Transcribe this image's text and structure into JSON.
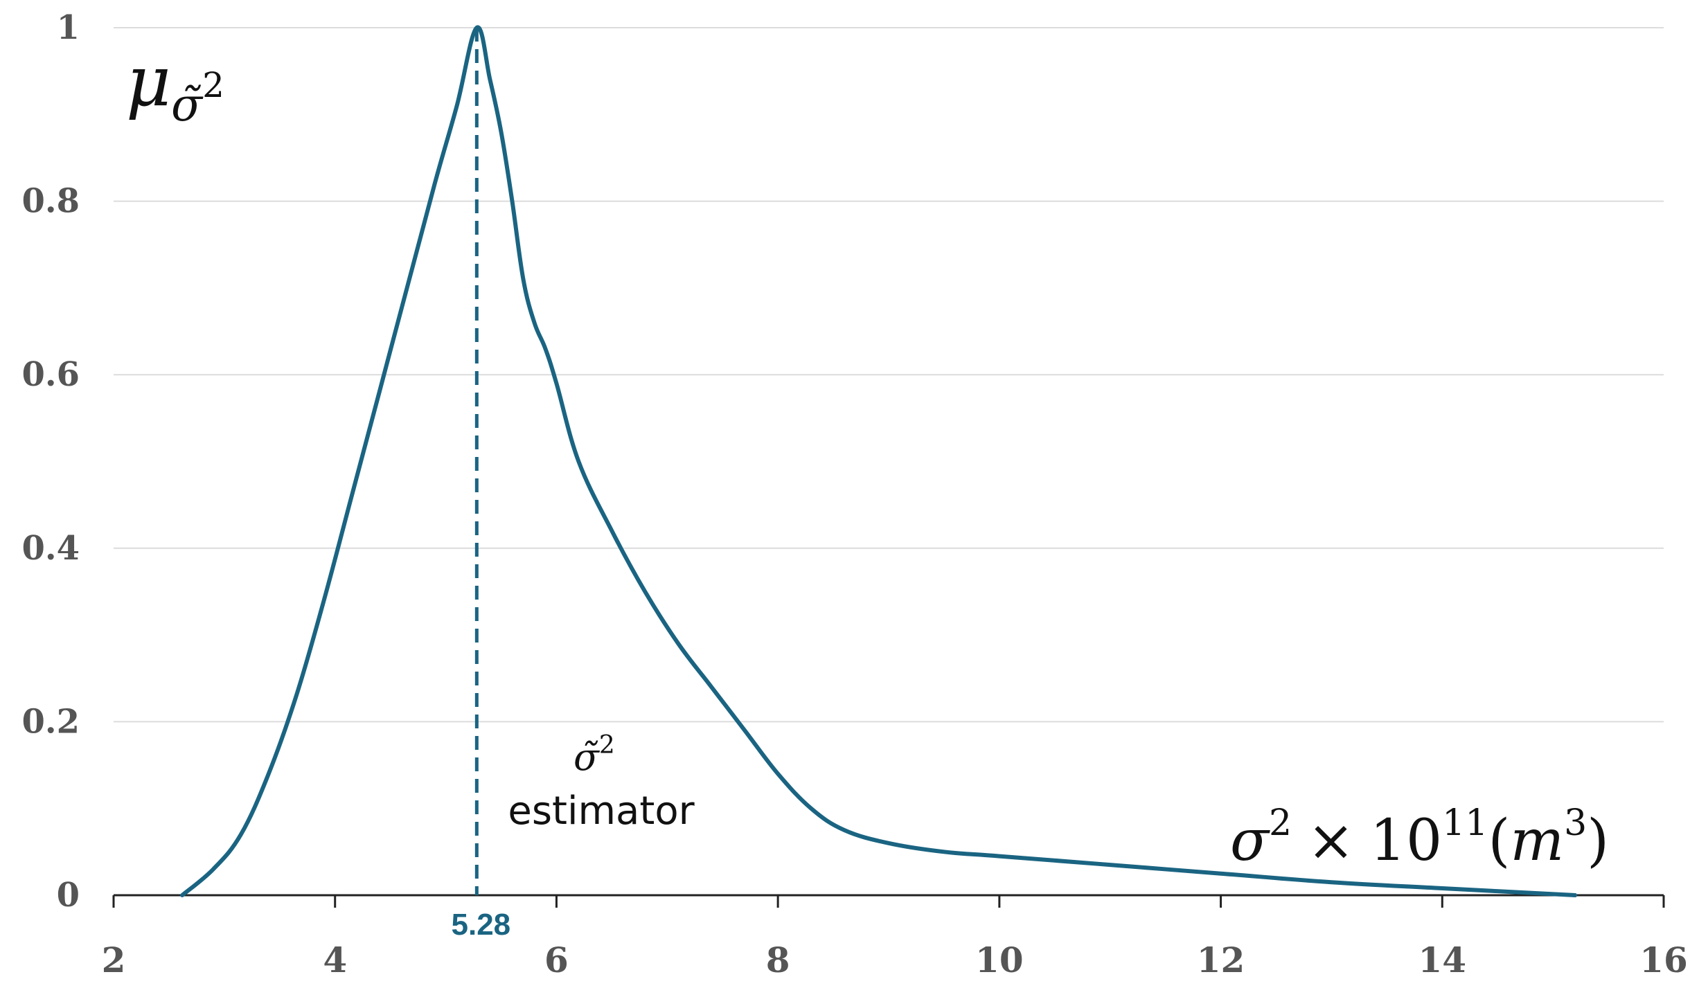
{
  "chart_data": {
    "type": "line",
    "title": "",
    "ylabel": {
      "symbol": "μ",
      "subscript": "σ̃",
      "subscript_exp": "2"
    },
    "xlabel": {
      "base": "σ",
      "base_exp": "2",
      "times": "×",
      "ten": "10",
      "ten_exp": "11",
      "unit_open": "(",
      "unit": "m",
      "unit_exp": "3",
      "unit_close": ")"
    },
    "xlim": [
      2,
      16
    ],
    "ylim": [
      0,
      1
    ],
    "x_ticks": [
      2,
      4,
      6,
      8,
      10,
      12,
      14,
      16
    ],
    "y_ticks": [
      0,
      0.2,
      0.4,
      0.6,
      0.8,
      1
    ],
    "x_tick_labels": [
      "2",
      "4",
      "6",
      "8",
      "10",
      "12",
      "14",
      "16"
    ],
    "y_tick_labels": [
      "0",
      "0.2",
      "0.4",
      "0.6",
      "0.8",
      "1"
    ],
    "grid": "horizontal",
    "line_color": "#1a6482",
    "marker": {
      "x": 5.28,
      "label": "5.28",
      "color": "#1a6482",
      "style": "dashed"
    },
    "annotation": {
      "symbol": "σ̃",
      "exp": "2",
      "text": "estimator"
    },
    "series": [
      {
        "x": [
          2.62,
          2.9,
          3.15,
          3.4,
          3.65,
          3.9,
          4.15,
          4.4,
          4.65,
          4.9,
          5.1,
          5.28,
          5.4,
          5.5,
          5.6,
          5.7,
          5.8,
          5.9,
          6.0,
          6.2,
          6.5,
          6.8,
          7.1,
          7.4,
          7.7,
          8.0,
          8.3,
          8.6,
          9.0,
          9.5,
          10.0,
          11.0,
          12.0,
          13.0,
          14.0,
          15.2
        ],
        "y": [
          0.0,
          0.03,
          0.07,
          0.14,
          0.23,
          0.34,
          0.46,
          0.58,
          0.7,
          0.82,
          0.91,
          1.0,
          0.94,
          0.88,
          0.8,
          0.71,
          0.66,
          0.63,
          0.59,
          0.5,
          0.42,
          0.35,
          0.29,
          0.24,
          0.19,
          0.14,
          0.1,
          0.075,
          0.06,
          0.05,
          0.045,
          0.035,
          0.025,
          0.015,
          0.008,
          0.0
        ]
      }
    ]
  }
}
